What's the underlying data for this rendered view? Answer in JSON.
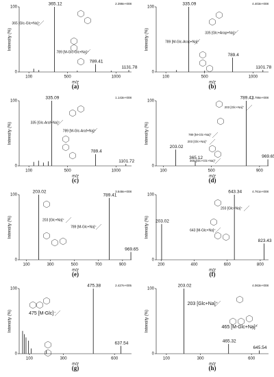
{
  "chart_data": [
    {
      "type": "bar",
      "label": "(a)",
      "scale_label": "2.398e+008",
      "x_label": "m/z",
      "y_label": "Intensity (%)",
      "color": "#111111",
      "x": [
        365.12,
        789.41,
        1131.78
      ],
      "values": [
        100,
        12,
        3
      ],
      "minor_x": [
        150,
        203,
        600,
        950
      ],
      "minor_values": [
        5,
        3,
        2,
        2
      ],
      "xlim": [
        0,
        1160
      ],
      "xticks": [
        100,
        500,
        1000
      ],
      "ylim": [
        0,
        100
      ],
      "yticks": [
        0,
        100
      ],
      "annotations": [
        "365 [Glc-Glc+Na]⁺",
        "789 [M-Glc-Glc+Na]⁺"
      ]
    },
    {
      "type": "bar",
      "label": "(b)",
      "scale_label": "4.403e+008",
      "x_label": "m/z",
      "y_label": "Intensity (%)",
      "color": "#111111",
      "x": [
        335.09,
        789.4,
        1101.78
      ],
      "values": [
        100,
        22,
        3
      ],
      "minor_x": [
        210,
        500
      ],
      "minor_values": [
        3,
        2
      ],
      "xlim": [
        0,
        1160
      ],
      "xticks": [
        100,
        500,
        1000
      ],
      "ylim": [
        0,
        100
      ],
      "yticks": [
        0,
        100
      ],
      "annotations": [
        "789 [M-Glc-Arap+Na]⁺",
        "335 [Glc+Arap+Na]⁺"
      ]
    },
    {
      "type": "bar",
      "label": "(c)",
      "scale_label": "1.143e+008",
      "x_label": "m/z",
      "y_label": "Intensity (%)",
      "color": "#111111",
      "x": [
        335.09,
        789.4,
        1101.72
      ],
      "values": [
        100,
        18,
        3
      ],
      "minor_x": [
        150,
        200,
        250,
        300
      ],
      "minor_values": [
        6,
        8,
        5,
        7
      ],
      "xlim": [
        0,
        1160
      ],
      "xticks": [
        100,
        500,
        1000
      ],
      "ylim": [
        0,
        100
      ],
      "yticks": [
        0,
        100
      ],
      "annotations": [
        "335 [Glc-Araf+Na]⁺",
        "789 [M-Glc-Araf+Na]⁺"
      ]
    },
    {
      "type": "bar",
      "label": "(d)",
      "scale_label": "1.786e+008",
      "x_label": "m/z",
      "y_label": "Intensity (%)",
      "color": "#111111",
      "x": [
        203.02,
        365.12,
        789.42,
        969.65
      ],
      "values": [
        25,
        8,
        100,
        10
      ],
      "minor_x": [],
      "minor_values": [],
      "xlim": [
        40,
        975
      ],
      "xticks": [
        100,
        500,
        900
      ],
      "ylim": [
        0,
        100
      ],
      "yticks": [
        0,
        100
      ],
      "annotations": [
        "203 [Glc+Na]⁺",
        "789 [M-Glc+Na]⁺",
        "203 [Glc+Na]⁺",
        "365 [Glc+Glc+Na]⁺"
      ]
    },
    {
      "type": "bar",
      "label": "(e)",
      "scale_label": "3.648e+008",
      "x_label": "m/z",
      "y_label": "Intensity (%)",
      "color": "#111111",
      "x": [
        203.02,
        789.41,
        969.65
      ],
      "values": [
        100,
        95,
        12
      ],
      "minor_x": [],
      "minor_values": [],
      "xlim": [
        40,
        975
      ],
      "xticks": [
        100,
        300,
        500,
        700,
        900
      ],
      "ylim": [
        0,
        100
      ],
      "yticks": [
        0,
        100
      ],
      "annotations": [
        "203 [Glc+Na]⁺",
        "789 [M-Glc+Na]⁺"
      ]
    },
    {
      "type": "bar",
      "label": "(f)",
      "scale_label": "4.761e+008",
      "x_label": "m/z",
      "y_label": "Intensity (%)",
      "color": "#111111",
      "x": [
        203.02,
        643.34,
        823.43
      ],
      "values": [
        55,
        100,
        25
      ],
      "minor_x": [],
      "minor_values": [],
      "xlim": [
        170,
        850
      ],
      "xticks": [
        200,
        400,
        600,
        800
      ],
      "ylim": [
        0,
        100
      ],
      "yticks": [
        0,
        100
      ],
      "annotations": [
        "203 [Glc+Na]⁺",
        "643 [M-Glc+Na]⁺"
      ]
    },
    {
      "type": "bar",
      "label": "(g)",
      "scale_label": "2.427e+005",
      "x_label": "m/z",
      "y_label": "Intensity (%)",
      "color": "#111111",
      "x": [
        475.38,
        637.54
      ],
      "values": [
        100,
        12
      ],
      "minor_x": [
        60,
        70,
        80,
        95,
        110,
        200
      ],
      "minor_values": [
        35,
        30,
        25,
        20,
        8,
        5
      ],
      "xlim": [
        40,
        700
      ],
      "xticks": [
        100,
        300,
        600
      ],
      "ylim": [
        0,
        100
      ],
      "yticks": [
        0,
        100
      ],
      "annotations": [
        "475 [M-Glc]⁻"
      ]
    },
    {
      "type": "bar",
      "label": "(h)",
      "scale_label": "4.063e+008",
      "x_label": "m/z",
      "y_label": "Intensity (%)",
      "color": "#111111",
      "x": [
        203.02,
        465.32,
        645.54
      ],
      "values": [
        100,
        15,
        5
      ],
      "minor_x": [],
      "minor_values": [],
      "xlim": [
        40,
        700
      ],
      "xticks": [
        100,
        300,
        600
      ],
      "ylim": [
        0,
        100
      ],
      "yticks": [
        0,
        100
      ],
      "annotations": [
        "203 [Glc+Na]⁺",
        "465 [M-Glc+Na]⁺"
      ]
    }
  ]
}
